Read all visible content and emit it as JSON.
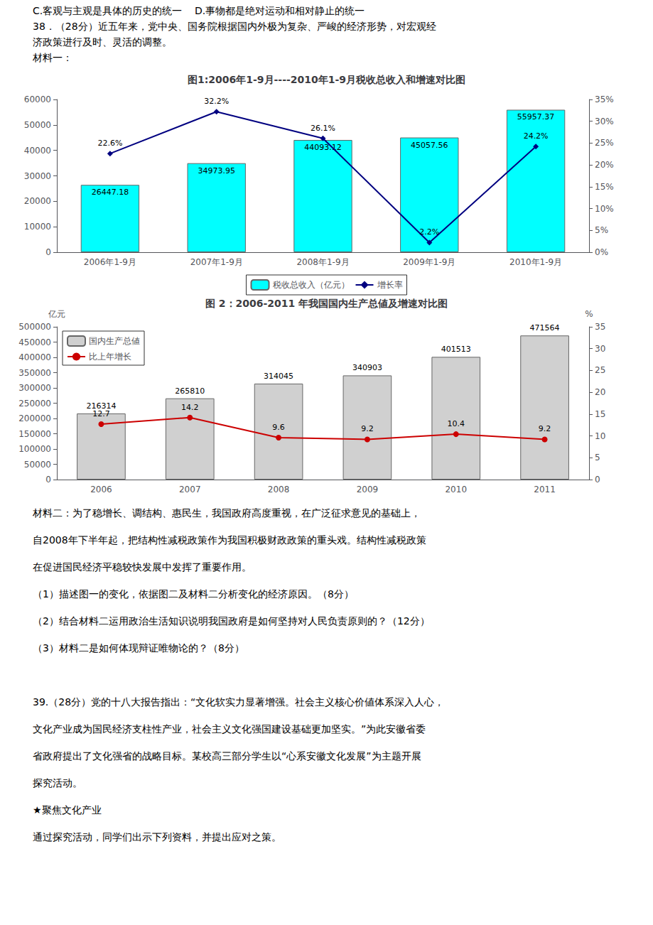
{
  "header_lines": [
    "C.客观与主观是具体的历史的统一    D.事物都是绝对运动和相对静止的统一",
    "38．（28分）近五年来，党中央、国务院根据国内外极为复杂、严峻的经济形势，对宏观经",
    "济政策进行及时、灵活的调整。",
    "材料一："
  ],
  "chart_data": [
    {
      "type": "bar",
      "title": "图1:2006年1-9月----2010年1-9月税收总收入和增速对比图",
      "categories": [
        "2006年1-9月",
        "2007年1-9月",
        "2008年1-9月",
        "2009年1-9月",
        "2010年1-9月"
      ],
      "series": [
        {
          "name": "税收总收入（亿元）",
          "type": "bar",
          "color": "#00ffff",
          "values": [
            26447.18,
            34973.95,
            44093.12,
            45057.56,
            55957.37
          ]
        },
        {
          "name": "增长率",
          "type": "line",
          "axis": "y2",
          "color": "#000080",
          "marker": "diamond",
          "values": [
            22.6,
            32.2,
            26.1,
            2.2,
            24.2
          ],
          "value_labels": [
            "22.6%",
            "32.2%",
            "26.1%",
            "2.2%",
            "24.2%"
          ]
        }
      ],
      "ylim": [
        0,
        60000
      ],
      "yticks": [
        0,
        10000,
        20000,
        30000,
        40000,
        50000,
        60000
      ],
      "y2lim": [
        0,
        35
      ],
      "y2ticks": [
        {
          "value": 0,
          "label": "0%"
        },
        {
          "value": 5,
          "label": "5%"
        },
        {
          "value": 10,
          "label": "10%"
        },
        {
          "value": 15,
          "label": "15%"
        },
        {
          "value": 20,
          "label": "20%"
        },
        {
          "value": 25,
          "label": "25%"
        },
        {
          "value": 30,
          "label": "30%"
        },
        {
          "value": 35,
          "label": "35%"
        }
      ],
      "data_labels": true,
      "legend": "bottom",
      "grid": false
    },
    {
      "type": "bar",
      "title": "图 2：2006-2011 年我国国内生产总値及增速对比图",
      "categories": [
        "2006",
        "2007",
        "2008",
        "2009",
        "2010",
        "2011"
      ],
      "series": [
        {
          "name": "国内生产总値",
          "type": "bar",
          "color": "#d0d0d0",
          "values": [
            216314,
            265810,
            314045,
            340903,
            401513,
            471564
          ]
        },
        {
          "name": "比上年增长",
          "type": "line",
          "axis": "y2",
          "color": "#cc0000",
          "marker": "circle",
          "values": [
            12.7,
            14.2,
            9.6,
            9.2,
            10.4,
            9.2
          ]
        }
      ],
      "ylabel": "亿元",
      "y2label": "%",
      "ylim": [
        0,
        500000
      ],
      "yticks": [
        0,
        50000,
        100000,
        150000,
        200000,
        250000,
        300000,
        350000,
        400000,
        450000,
        500000
      ],
      "y2lim": [
        0,
        35
      ],
      "y2ticks": [
        0,
        5,
        10,
        15,
        20,
        25,
        30,
        35
      ],
      "data_labels": true,
      "legend": "upper left",
      "grid": false
    }
  ],
  "footer_lines": [
    [
      "材料二：为了稳增长、调结构、惠民生，我国政府高度重视，在广泛征求意见的基础上，",
      "自2008年下半年起，把结构性减税政策作为我国积极财政政策的重头戏。结构性减税政策",
      "在促进国民经济平稳较快发展中发挥了重要作用。",
      "（1）描述图一的变化，依据图二及材料二分析变化的经济原因。（8分）",
      "（2）结合材料二运用政治生活知识说明我国政府是如何坚持对人民负责原则的？（12分）",
      "（3）材料二是如何体现辩证唯物论的？（8分）"
    ],
    [
      "39.（28分）党的十八大报告指出：“文化软实力显著增强。社会主义核心价値体系深入人心，",
      "文化产业成为国民经济支柱性产业，社会主义文化强国建设基础更加坚实。”为此安徽省委",
      "省政府提出了文化强省的战略目标。某校高三部分学生以“心系安徽文化发展”为主题开展",
      "探究活动。",
      "★聚焦文化产业",
      "通过探究活动，同学们出示下列资料，并提出应对之策。"
    ]
  ]
}
